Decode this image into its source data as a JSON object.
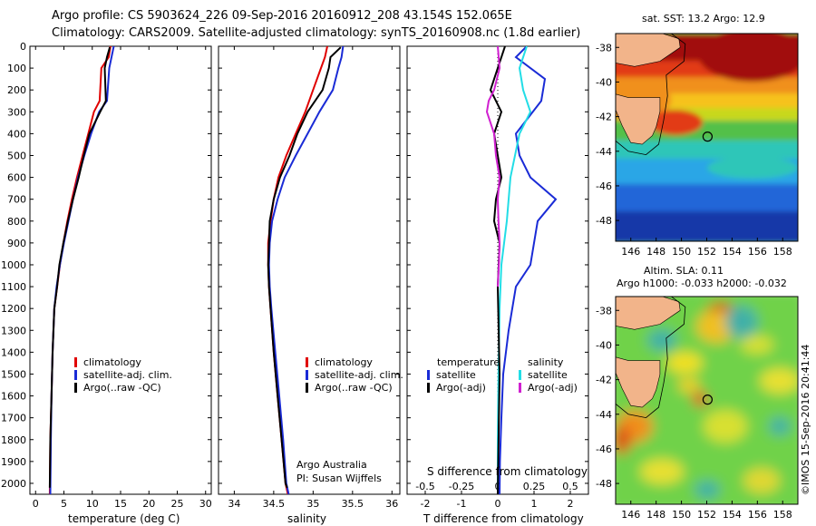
{
  "header": {
    "line1": "Argo profile: CS 5903624_226 09-Sep-2016 20160912_208 43.154S 152.065E",
    "line2": "Climatology: CARS2009. Satellite-adjusted climatology: synTS_20160908.nc (1.8d earlier)"
  },
  "colors": {
    "climatology": "#e00000",
    "satellite": "#1a2bd6",
    "argo": "#000000",
    "sat_salinity": "#22dde6",
    "argo_salinity_diff": "#d020d0",
    "land": "#f2b48a"
  },
  "chart_data": [
    {
      "type": "line",
      "panel": "temperature",
      "xlabel": "temperature (deg C)",
      "ylabel": "",
      "xlim": [
        -1,
        31
      ],
      "ylim": [
        2050,
        0
      ],
      "xticks": [
        0,
        5,
        10,
        15,
        20,
        25,
        30
      ],
      "yticks": [
        0,
        100,
        200,
        300,
        400,
        500,
        600,
        700,
        800,
        900,
        1000,
        1100,
        1200,
        1300,
        1400,
        1500,
        1600,
        1700,
        1800,
        1900,
        2000
      ],
      "legend": [
        "climatology",
        "satellite-adj. clim.",
        "Argo(..raw -QC)"
      ],
      "series": [
        {
          "name": "climatology",
          "color": "#e00000",
          "x": [
            13.2,
            12.9,
            11.6,
            11.3,
            10.3,
            9.3,
            8.3,
            7.3,
            6.4,
            5.6,
            4.9,
            4.3,
            3.8,
            3.3,
            3.0,
            2.8,
            2.6,
            2.5
          ],
          "y": [
            0,
            50,
            100,
            250,
            300,
            400,
            500,
            600,
            700,
            800,
            900,
            1000,
            1100,
            1200,
            1400,
            1600,
            1800,
            2050
          ]
        },
        {
          "name": "satellite-adj. clim.",
          "color": "#1a2bd6",
          "x": [
            13.8,
            13.4,
            13.0,
            12.6,
            11.2,
            9.8,
            8.6,
            7.5,
            6.6,
            5.8,
            5.0,
            4.3,
            3.7,
            3.3,
            3.0,
            2.8,
            2.7,
            2.6
          ],
          "y": [
            0,
            50,
            100,
            250,
            300,
            400,
            500,
            600,
            700,
            800,
            900,
            1000,
            1100,
            1200,
            1400,
            1600,
            1800,
            2050
          ]
        },
        {
          "name": "Argo(..raw -QC)",
          "color": "#000000",
          "x": [
            13.1,
            12.6,
            12.2,
            12.4,
            11.4,
            9.5,
            8.5,
            7.6,
            6.6,
            5.7,
            4.9,
            4.2,
            3.8,
            3.3,
            3.0,
            2.8,
            2.6,
            2.5
          ],
          "y": [
            5,
            50,
            100,
            250,
            300,
            400,
            500,
            600,
            700,
            800,
            900,
            1000,
            1100,
            1200,
            1400,
            1600,
            1800,
            2020
          ]
        }
      ]
    },
    {
      "type": "line",
      "panel": "salinity",
      "xlabel": "salinity",
      "xlim": [
        33.8,
        36.1
      ],
      "ylim": [
        2050,
        0
      ],
      "xticks": [
        34,
        34.5,
        35,
        35.5,
        36
      ],
      "legend": [
        "climatology",
        "satellite-adj. clim.",
        "Argo(..raw -QC)"
      ],
      "annotation": [
        "Argo Australia",
        "PI: Susan Wijffels"
      ],
      "series": [
        {
          "name": "climatology",
          "color": "#e00000",
          "x": [
            35.18,
            35.15,
            35.1,
            35.0,
            34.9,
            34.78,
            34.66,
            34.56,
            34.5,
            34.46,
            34.43,
            34.43,
            34.44,
            34.46,
            34.5,
            34.55,
            34.6,
            34.65,
            34.68
          ],
          "y": [
            0,
            50,
            100,
            200,
            300,
            400,
            500,
            600,
            700,
            800,
            900,
            1000,
            1100,
            1200,
            1400,
            1600,
            1800,
            2000,
            2050
          ]
        },
        {
          "name": "satellite-adj. clim.",
          "color": "#1a2bd6",
          "x": [
            35.38,
            35.36,
            35.32,
            35.25,
            35.08,
            34.93,
            34.78,
            34.64,
            34.55,
            34.48,
            34.45,
            34.44,
            34.45,
            34.47,
            34.52,
            34.57,
            34.62,
            34.66,
            34.69
          ],
          "y": [
            0,
            50,
            100,
            200,
            300,
            400,
            500,
            600,
            700,
            800,
            900,
            1000,
            1100,
            1200,
            1400,
            1600,
            1800,
            2000,
            2050
          ]
        },
        {
          "name": "Argo(..raw -QC)",
          "color": "#000000",
          "x": [
            35.35,
            35.22,
            35.2,
            35.12,
            34.93,
            34.8,
            34.7,
            34.58,
            34.5,
            34.45,
            34.44,
            34.43,
            34.44,
            34.46,
            34.5,
            34.55,
            34.6,
            34.65,
            34.67
          ],
          "y": [
            5,
            50,
            100,
            200,
            300,
            400,
            500,
            600,
            700,
            800,
            900,
            1000,
            1100,
            1200,
            1400,
            1600,
            1800,
            2000,
            2020
          ]
        }
      ]
    },
    {
      "type": "line",
      "panel": "difference",
      "xlabel": "T difference from climatology",
      "xlabel_top": "S difference from climatology",
      "xlim": [
        -2.5,
        2.5
      ],
      "ylim": [
        2050,
        0
      ],
      "xticks": [
        -2,
        -1,
        0,
        1,
        2
      ],
      "xticks_s": [
        "-0.5",
        "-0.25",
        "0",
        "0.25",
        "0.5"
      ],
      "legend_temperature": [
        "temperature",
        "satellite",
        "Argo(-adj)"
      ],
      "legend_salinity": [
        "salinity",
        "satellite",
        "Argo(-adj)"
      ],
      "series": [
        {
          "name": "satellite",
          "color": "#1a2bd6",
          "x": [
            0.8,
            0.5,
            1.3,
            1.2,
            0.5,
            0.6,
            0.9,
            1.6,
            1.1,
            0.9,
            0.5,
            0.3,
            0.15,
            0.1,
            0.08,
            0.06,
            0.05
          ],
          "y": [
            0,
            50,
            150,
            250,
            400,
            500,
            600,
            700,
            800,
            1000,
            1100,
            1300,
            1500,
            1700,
            1800,
            1900,
            2050
          ]
        },
        {
          "name": "satellite",
          "color": "#22dde6",
          "x": [
            0.8,
            0.6,
            0.7,
            0.9,
            0.6,
            0.35,
            0.25,
            0.1,
            0.05,
            0.02,
            0.0,
            0.0
          ],
          "y": [
            0,
            100,
            200,
            300,
            400,
            600,
            800,
            1000,
            1200,
            1500,
            1800,
            2050
          ]
        },
        {
          "name": "Argo(-adj)",
          "color": "#000000",
          "x": [
            0.2,
            0.0,
            -0.2,
            0.1,
            -0.1,
            0.0,
            0.1,
            -0.05,
            -0.1,
            0.05,
            0.0,
            0.05,
            0.0
          ],
          "y": [
            0,
            100,
            200,
            300,
            400,
            500,
            600,
            700,
            800,
            900,
            1100,
            1500,
            2050
          ]
        },
        {
          "name": "Argo(-adj)",
          "color": "#d020d0",
          "x": [
            0.0,
            0.05,
            -0.1,
            -0.25,
            -0.3,
            -0.1,
            -0.05,
            0.05,
            0.0,
            0.02,
            0.05,
            0.03,
            0.0
          ],
          "y": [
            0,
            100,
            200,
            250,
            300,
            400,
            500,
            600,
            700,
            800,
            900,
            1000,
            1100
          ]
        }
      ]
    },
    {
      "type": "heatmap",
      "panel": "sst_map",
      "title": "sat. SST: 13.2 Argo: 12.9",
      "xticks": [
        146,
        148,
        150,
        152,
        154,
        156,
        158
      ],
      "yticks": [
        -38,
        -40,
        -42,
        -44,
        -46,
        -48
      ],
      "xlim": [
        144.8,
        159.2
      ],
      "ylim": [
        -49.2,
        -37.2
      ],
      "marker": {
        "lon": 152.065,
        "lat": -43.154
      }
    },
    {
      "type": "heatmap",
      "panel": "sla_map",
      "title": "Altim. SLA: 0.11",
      "subtitle": "Argo h1000: -0.033 h2000: -0.032",
      "xticks": [
        146,
        148,
        150,
        152,
        154,
        156,
        158
      ],
      "yticks": [
        -38,
        -40,
        -42,
        -44,
        -46,
        -48
      ],
      "xlim": [
        144.8,
        159.2
      ],
      "ylim": [
        -49.2,
        -37.2
      ],
      "marker": {
        "lon": 152.065,
        "lat": -43.154
      }
    }
  ],
  "footer": {
    "credit": "©IMOS 15-Sep-2016 20:41:44"
  }
}
